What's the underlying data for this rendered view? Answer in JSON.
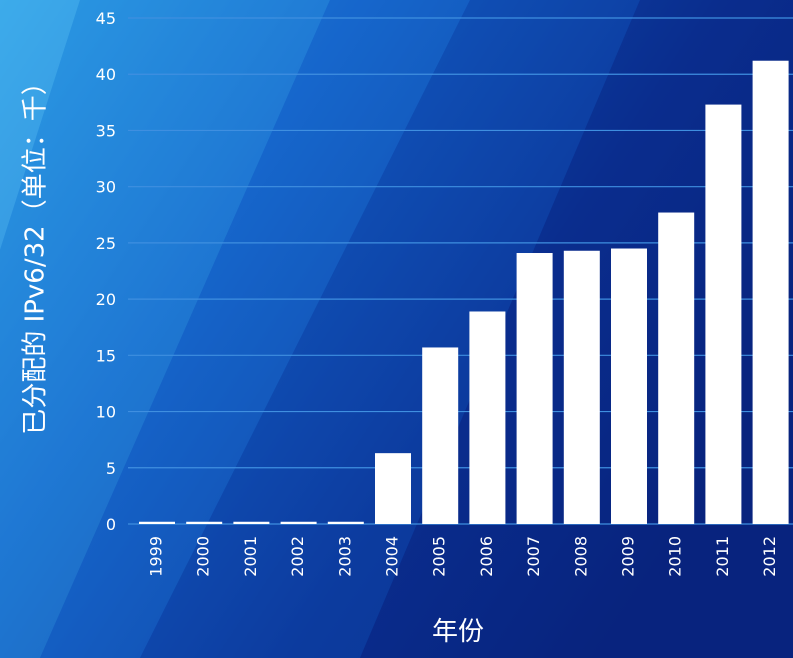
{
  "chart_data": {
    "type": "bar",
    "categories": [
      "1999",
      "2000",
      "2001",
      "2002",
      "2003",
      "2004",
      "2005",
      "2006",
      "2007",
      "2008",
      "2009",
      "2010",
      "2011",
      "2012"
    ],
    "values": [
      0.2,
      0.2,
      0.2,
      0.2,
      0.2,
      6.3,
      15.7,
      18.9,
      24.1,
      24.3,
      24.5,
      27.7,
      37.3,
      41.2
    ],
    "xlabel": "年份",
    "ylabel": "已分配的 IPv6/32（单位：千）",
    "ylim": [
      0,
      45
    ],
    "yticks": [
      0,
      5,
      10,
      15,
      20,
      25,
      30,
      35,
      40,
      45
    ],
    "grid": true,
    "legend": "none",
    "colors": {
      "bar": "#ffffff",
      "grid": "#3f8fe0",
      "text": "#ffffff",
      "background_deep": "#0a2a86",
      "background_light": "#1e8ee0"
    }
  }
}
